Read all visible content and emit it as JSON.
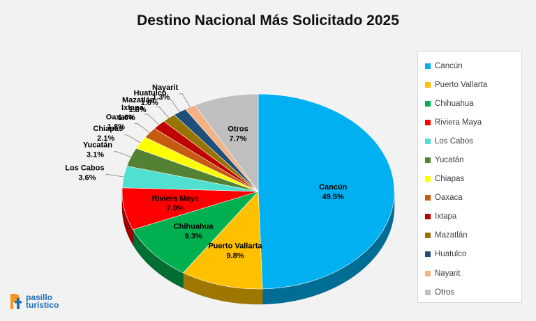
{
  "chart_data": {
    "type": "pie",
    "title": "Destino Nacional Más Solicitado 2025",
    "slices": [
      {
        "label": "Cancún",
        "value": 49.5,
        "value_label": "49.5%",
        "color": "#00b0f0"
      },
      {
        "label": "Puerto Vallarta",
        "value": 9.8,
        "value_label": "9.8%",
        "color": "#ffc000"
      },
      {
        "label": "Chihuahua",
        "value": 9.3,
        "value_label": "9.3%",
        "color": "#00b050"
      },
      {
        "label": "Riviera Maya",
        "value": 7.0,
        "value_label": "7.0%",
        "color": "#ff0000"
      },
      {
        "label": "Los Cabos",
        "value": 3.6,
        "value_label": "3.6%",
        "color": "#4fe0d0"
      },
      {
        "label": "Yucatán",
        "value": 3.1,
        "value_label": "3.1%",
        "color": "#548235"
      },
      {
        "label": "Chiapas",
        "value": 2.1,
        "value_label": "2.1%",
        "color": "#ffff00"
      },
      {
        "label": "Oaxaca",
        "value": 1.8,
        "value_label": "1.8%",
        "color": "#c55a11"
      },
      {
        "label": "Ixtapa",
        "value": 1.6,
        "value_label": "1.6%",
        "color": "#c00000"
      },
      {
        "label": "Mazatlán",
        "value": 1.6,
        "value_label": "1.6%",
        "color": "#997300"
      },
      {
        "label": "Huatulco",
        "value": 1.6,
        "value_label": "1.6%",
        "color": "#1f4e79"
      },
      {
        "label": "Nayarit",
        "value": 1.3,
        "value_label": "1.3%",
        "color": "#f4b183"
      },
      {
        "label": "Otros",
        "value": 7.7,
        "value_label": "7.7%",
        "color": "#bfbfbf"
      }
    ],
    "legend_position": "right"
  },
  "logo": {
    "line1": "pasillo",
    "line2": "turístico"
  }
}
